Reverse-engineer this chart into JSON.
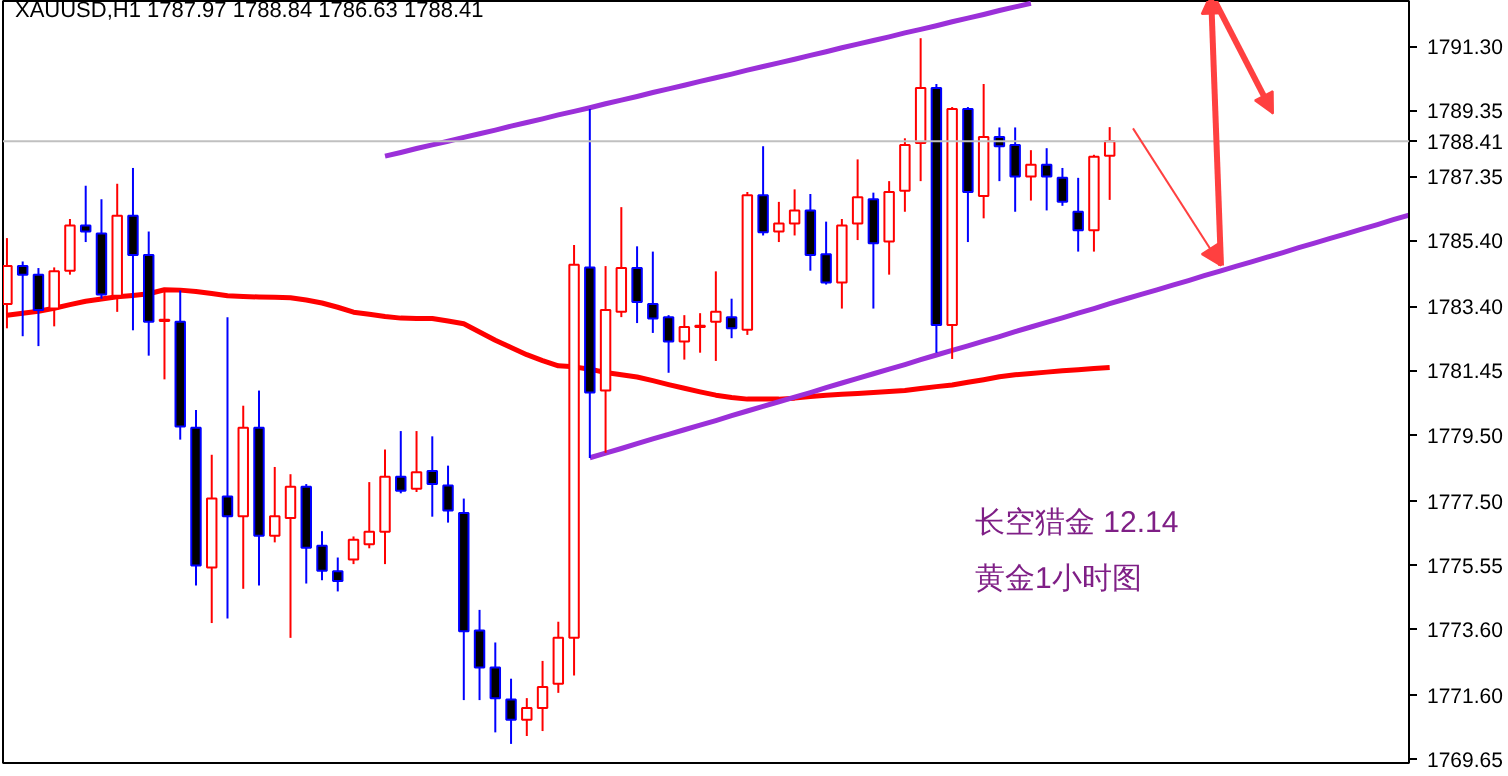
{
  "chart_data": {
    "type": "candlestick",
    "title": "XAUUSD,H1  1787.97 1788.84 1786.63 1788.41",
    "categories": [
      null,
      null,
      null,
      null,
      null,
      null,
      null,
      null,
      null,
      null,
      null,
      null,
      null,
      null,
      null,
      null,
      null,
      null,
      null,
      null,
      null,
      null,
      null,
      null,
      null,
      null,
      null,
      null,
      null,
      null,
      null,
      null,
      null,
      null,
      null,
      null,
      null,
      null,
      null,
      null,
      null,
      null,
      null,
      null,
      null,
      null,
      null,
      null,
      null,
      null,
      null,
      null,
      null,
      null,
      null,
      null,
      null,
      null,
      null,
      null,
      null,
      null,
      null,
      null,
      null,
      null,
      null,
      null,
      null,
      null,
      null,
      null,
      null,
      null,
      null,
      null,
      null,
      null,
      null,
      null,
      null,
      null,
      null,
      null,
      null,
      null,
      null,
      null,
      null,
      null
    ],
    "ohlc": [
      [
        1783.47,
        1785.47,
        1782.73,
        1784.62
      ],
      [
        1784.62,
        1784.76,
        1782.49,
        1784.36
      ],
      [
        1784.36,
        1784.56,
        1782.19,
        1783.29
      ],
      [
        1783.33,
        1784.58,
        1782.79,
        1784.46
      ],
      [
        1784.48,
        1786.05,
        1784.36,
        1785.85
      ],
      [
        1785.85,
        1787.06,
        1785.35,
        1785.67
      ],
      [
        1785.61,
        1786.65,
        1783.63,
        1783.76
      ],
      [
        1783.72,
        1787.12,
        1783.23,
        1786.15
      ],
      [
        1786.15,
        1787.6,
        1782.67,
        1784.96
      ],
      [
        1784.96,
        1785.67,
        1781.9,
        1782.93
      ],
      [
        1782.95,
        1783.92,
        1781.18,
        1782.99
      ],
      [
        1782.93,
        1783.88,
        1779.35,
        1779.75
      ],
      [
        1779.71,
        1780.25,
        1774.92,
        1775.53
      ],
      [
        1775.47,
        1778.89,
        1773.78,
        1777.56
      ],
      [
        1777.62,
        1783.07,
        1773.92,
        1777.02
      ],
      [
        1777.02,
        1780.38,
        1774.82,
        1779.71
      ],
      [
        1779.71,
        1780.84,
        1774.92,
        1776.43
      ],
      [
        1776.43,
        1778.52,
        1776.23,
        1777.02
      ],
      [
        1776.97,
        1778.3,
        1773.33,
        1777.92
      ],
      [
        1777.92,
        1778.0,
        1774.98,
        1776.07
      ],
      [
        1776.13,
        1776.57,
        1775.08,
        1775.37
      ],
      [
        1775.35,
        1775.77,
        1774.74,
        1775.06
      ],
      [
        1775.71,
        1776.41,
        1775.57,
        1776.31
      ],
      [
        1776.17,
        1778.06,
        1776.05,
        1776.55
      ],
      [
        1776.55,
        1779.05,
        1775.57,
        1778.22
      ],
      [
        1778.22,
        1779.61,
        1777.72,
        1777.8
      ],
      [
        1777.86,
        1779.61,
        1777.76,
        1778.36
      ],
      [
        1778.4,
        1779.45,
        1777.01,
        1778.0
      ],
      [
        1777.96,
        1778.56,
        1776.83,
        1777.2
      ],
      [
        1777.12,
        1777.56,
        1771.44,
        1773.53
      ],
      [
        1773.55,
        1774.18,
        1771.44,
        1772.43
      ],
      [
        1772.43,
        1773.19,
        1770.46,
        1771.5
      ],
      [
        1771.46,
        1772.09,
        1770.11,
        1770.84
      ],
      [
        1770.84,
        1771.5,
        1770.35,
        1771.2
      ],
      [
        1771.2,
        1772.63,
        1770.5,
        1771.84
      ],
      [
        1771.94,
        1773.82,
        1771.66,
        1773.33
      ],
      [
        1773.33,
        1785.26,
        1772.19,
        1784.66
      ],
      [
        1784.58,
        1789.39,
        1778.79,
        1780.78
      ],
      [
        1780.84,
        1784.62,
        1778.95,
        1783.29
      ],
      [
        1783.23,
        1786.41,
        1783.07,
        1784.56
      ],
      [
        1784.56,
        1785.22,
        1782.89,
        1783.53
      ],
      [
        1783.47,
        1785.06,
        1782.59,
        1783.03
      ],
      [
        1783.07,
        1783.13,
        1781.38,
        1782.33
      ],
      [
        1782.33,
        1783.13,
        1781.78,
        1782.77
      ],
      [
        1782.77,
        1783.19,
        1781.99,
        1782.81
      ],
      [
        1782.93,
        1784.46,
        1781.74,
        1783.23
      ],
      [
        1783.07,
        1783.63,
        1782.43,
        1782.73
      ],
      [
        1782.69,
        1786.87,
        1782.53,
        1786.77
      ],
      [
        1786.77,
        1788.26,
        1785.55,
        1785.65
      ],
      [
        1785.67,
        1786.57,
        1785.35,
        1785.91
      ],
      [
        1785.91,
        1786.95,
        1785.55,
        1786.31
      ],
      [
        1786.31,
        1786.81,
        1784.48,
        1784.96
      ],
      [
        1784.98,
        1785.97,
        1784.06,
        1784.12
      ],
      [
        1784.12,
        1786.05,
        1783.33,
        1785.85
      ],
      [
        1785.91,
        1787.86,
        1785.41,
        1786.71
      ],
      [
        1786.65,
        1786.85,
        1783.33,
        1785.31
      ],
      [
        1785.37,
        1787.2,
        1784.36,
        1786.87
      ],
      [
        1786.91,
        1788.5,
        1786.27,
        1788.3
      ],
      [
        1788.36,
        1791.54,
        1787.2,
        1790.03
      ],
      [
        1790.03,
        1790.15,
        1781.99,
        1782.83
      ],
      [
        1782.83,
        1789.45,
        1781.8,
        1789.39
      ],
      [
        1789.39,
        1789.45,
        1785.35,
        1786.87
      ],
      [
        1786.75,
        1790.15,
        1786.07,
        1788.54
      ],
      [
        1788.54,
        1788.83,
        1787.2,
        1788.26
      ],
      [
        1788.3,
        1788.83,
        1786.27,
        1787.34
      ],
      [
        1787.34,
        1788.14,
        1786.61,
        1787.7
      ],
      [
        1787.7,
        1788.2,
        1786.31,
        1787.34
      ],
      [
        1787.3,
        1787.6,
        1786.45,
        1786.57
      ],
      [
        1786.27,
        1787.3,
        1785.06,
        1785.71
      ],
      [
        1785.71,
        1788.0,
        1785.06,
        1787.94
      ],
      [
        1787.97,
        1788.84,
        1786.63,
        1788.41
      ],
      null,
      null,
      null,
      null,
      null,
      null,
      null,
      null,
      null,
      null,
      null,
      null,
      null,
      null,
      null,
      null,
      null,
      null,
      null
    ],
    "series": [
      {
        "type": "line",
        "color": "#ff0000",
        "values": [
          1783.13,
          1783.19,
          1783.25,
          1783.34,
          1783.45,
          1783.55,
          1783.62,
          1783.69,
          1783.73,
          1783.78,
          1783.9,
          1783.89,
          1783.85,
          1783.79,
          1783.72,
          1783.7,
          1783.68,
          1783.67,
          1783.66,
          1783.59,
          1783.5,
          1783.37,
          1783.22,
          1783.16,
          1783.09,
          1783.04,
          1783.03,
          1783.03,
          1782.95,
          1782.87,
          1782.62,
          1782.37,
          1782.15,
          1781.93,
          1781.75,
          1781.59,
          1781.56,
          1781.49,
          1781.39,
          1781.32,
          1781.25,
          1781.14,
          1781.02,
          1780.91,
          1780.8,
          1780.7,
          1780.63,
          1780.58,
          1780.58,
          1780.58,
          1780.61,
          1780.66,
          1780.7,
          1780.73,
          1780.75,
          1780.78,
          1780.81,
          1780.84,
          1780.9,
          1780.96,
          1781.01,
          1781.09,
          1781.17,
          1781.26,
          1781.32,
          1781.36,
          1781.4,
          1781.44,
          1781.47,
          1781.51,
          1781.54,
          null,
          null,
          null,
          null,
          null,
          null,
          null,
          null,
          null,
          null,
          null,
          null,
          null,
          null,
          null,
          null,
          null,
          null,
          null
        ]
      },
      {
        "type": "line",
        "color": "#9b30d9",
        "values": [
          null,
          null,
          null,
          null,
          null,
          null,
          null,
          null,
          null,
          null,
          null,
          null,
          null,
          null,
          null,
          null,
          null,
          null,
          null,
          null,
          null,
          null,
          null,
          null,
          1787.96,
          1788.07,
          1788.19,
          1788.3,
          1788.41,
          1788.53,
          1788.64,
          1788.75,
          1788.87,
          1788.98,
          1789.09,
          1789.21,
          1789.32,
          1789.43,
          1789.55,
          1789.66,
          1789.77,
          1789.89,
          1790.0,
          1790.11,
          1790.23,
          1790.34,
          1790.45,
          1790.57,
          1790.68,
          1790.79,
          1790.9,
          1791.02,
          1791.13,
          1791.25,
          1791.36,
          1791.47,
          1791.58,
          1791.7,
          1791.81,
          1791.92,
          1792.04,
          1792.15,
          1792.26,
          1792.38,
          1792.49,
          1792.6,
          null,
          null,
          null,
          null,
          null,
          null,
          null,
          null,
          null,
          null,
          null,
          null,
          null,
          null,
          null,
          null,
          null,
          null,
          null,
          null,
          null,
          null,
          null,
          null
        ]
      },
      {
        "type": "line",
        "color": "#9b30d9",
        "values": [
          null,
          null,
          null,
          null,
          null,
          null,
          null,
          null,
          null,
          null,
          null,
          null,
          null,
          null,
          null,
          null,
          null,
          null,
          null,
          null,
          null,
          null,
          null,
          null,
          null,
          null,
          null,
          null,
          null,
          null,
          null,
          null,
          null,
          null,
          null,
          null,
          null,
          1778.8,
          1778.94,
          1779.08,
          1779.23,
          1779.37,
          1779.51,
          1779.65,
          1779.79,
          1779.93,
          1780.08,
          1780.22,
          1780.36,
          1780.5,
          1780.64,
          1780.78,
          1780.93,
          1781.07,
          1781.21,
          1781.35,
          1781.49,
          1781.63,
          1781.78,
          1781.92,
          1782.06,
          1782.2,
          1782.34,
          1782.48,
          1782.63,
          1782.77,
          1782.91,
          1783.05,
          1783.19,
          1783.33,
          1783.48,
          1783.62,
          1783.76,
          1783.9,
          1784.04,
          1784.18,
          1784.33,
          1784.47,
          1784.61,
          1784.75,
          1784.89,
          1785.03,
          1785.18,
          1785.32,
          1785.46,
          1785.6,
          1785.74,
          1785.88,
          1786.03,
          1786.17
        ]
      }
    ],
    "ref_lines": [
      {
        "axis": "y",
        "value": 1788.41,
        "label": "1788.41",
        "color": "#c0c0c0"
      }
    ],
    "annotations": [
      "长空猎金  12.14",
      "黄金1小时图"
    ],
    "ylim": [
      1769.53,
      1792.67
    ],
    "yticks": [
      {
        "value": 1791.3,
        "label": "1791.30"
      },
      {
        "value": 1789.35,
        "label": "1789.35"
      },
      {
        "value": 1787.35,
        "label": "1787.35"
      },
      {
        "value": 1785.4,
        "label": "1785.40"
      },
      {
        "value": 1783.4,
        "label": "1783.40"
      },
      {
        "value": 1781.45,
        "label": "1781.45"
      },
      {
        "value": 1779.5,
        "label": "1779.50"
      },
      {
        "value": 1777.5,
        "label": "1777.50"
      },
      {
        "value": 1775.55,
        "label": "1775.55"
      },
      {
        "value": 1773.6,
        "label": "1773.60"
      },
      {
        "value": 1771.6,
        "label": "1771.60"
      },
      {
        "value": 1769.65,
        "label": "1769.65"
      }
    ],
    "tick_labels": "y",
    "grid": false
  }
}
